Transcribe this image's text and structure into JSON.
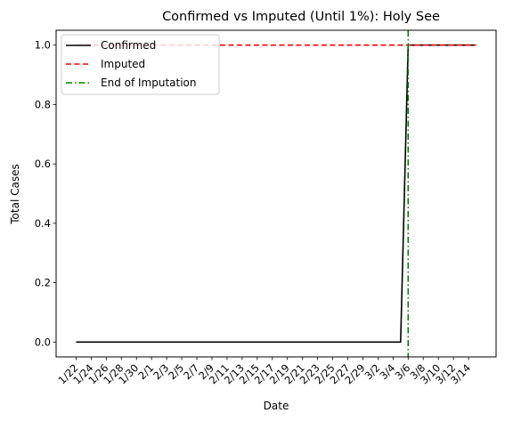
{
  "chart_data": {
    "type": "line",
    "title": "Confirmed vs Imputed (Until 1%): Holy See",
    "xlabel": "Date",
    "ylabel": "Total Cases",
    "x": [
      "1/22",
      "1/23",
      "1/24",
      "1/25",
      "1/26",
      "1/27",
      "1/28",
      "1/29",
      "1/30",
      "1/31",
      "2/1",
      "2/2",
      "2/3",
      "2/4",
      "2/5",
      "2/6",
      "2/7",
      "2/8",
      "2/9",
      "2/10",
      "2/11",
      "2/12",
      "2/13",
      "2/14",
      "2/15",
      "2/16",
      "2/17",
      "2/18",
      "2/19",
      "2/20",
      "2/21",
      "2/22",
      "2/23",
      "2/24",
      "2/25",
      "2/26",
      "2/27",
      "2/28",
      "2/29",
      "3/1",
      "3/2",
      "3/3",
      "3/4",
      "3/5",
      "3/6",
      "3/7",
      "3/8",
      "3/9",
      "3/10",
      "3/11",
      "3/12",
      "3/13",
      "3/14",
      "3/15"
    ],
    "xtick_labels": [
      "1/22",
      "1/24",
      "1/26",
      "1/28",
      "1/30",
      "2/1",
      "2/3",
      "2/5",
      "2/7",
      "2/9",
      "2/11",
      "2/13",
      "2/15",
      "2/17",
      "2/19",
      "2/21",
      "2/23",
      "2/25",
      "2/27",
      "2/29",
      "3/2",
      "3/4",
      "3/6",
      "3/8",
      "3/10",
      "3/12",
      "3/14"
    ],
    "yticks": [
      "0.0",
      "0.2",
      "0.4",
      "0.6",
      "0.8",
      "1.0"
    ],
    "ylim": [
      -0.05,
      1.05
    ],
    "series": [
      {
        "name": "Confirmed",
        "color": "#000000",
        "dash": "solid",
        "values": [
          0,
          0,
          0,
          0,
          0,
          0,
          0,
          0,
          0,
          0,
          0,
          0,
          0,
          0,
          0,
          0,
          0,
          0,
          0,
          0,
          0,
          0,
          0,
          0,
          0,
          0,
          0,
          0,
          0,
          0,
          0,
          0,
          0,
          0,
          0,
          0,
          0,
          0,
          0,
          0,
          0,
          0,
          0,
          0,
          1,
          1,
          1,
          1,
          1,
          1,
          1,
          1,
          1,
          1
        ]
      },
      {
        "name": "Imputed",
        "color": "#ff0000",
        "dash": "dashed",
        "values": [
          1,
          1,
          1,
          1,
          1,
          1,
          1,
          1,
          1,
          1,
          1,
          1,
          1,
          1,
          1,
          1,
          1,
          1,
          1,
          1,
          1,
          1,
          1,
          1,
          1,
          1,
          1,
          1,
          1,
          1,
          1,
          1,
          1,
          1,
          1,
          1,
          1,
          1,
          1,
          1,
          1,
          1,
          1,
          1,
          1,
          1,
          1,
          1,
          1,
          1,
          1,
          1,
          1,
          1
        ]
      }
    ],
    "vline": {
      "name": "End of Imputation",
      "x": "3/6",
      "color": "#008000",
      "dash": "dashdot"
    },
    "legend": {
      "placement": "top-left",
      "entries": [
        "Confirmed",
        "Imputed",
        "End of Imputation"
      ]
    },
    "grid": false
  }
}
